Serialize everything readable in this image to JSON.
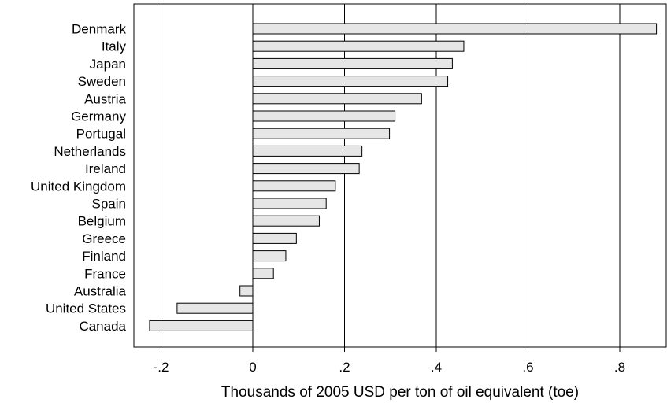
{
  "chart_data": {
    "type": "bar",
    "orientation": "horizontal",
    "title": "",
    "xlabel": "Thousands of 2005 USD per ton of oil equivalent (toe)",
    "ylabel": "",
    "xlim": [
      -0.26,
      0.9
    ],
    "xticks": [
      -0.2,
      0,
      0.2,
      0.4,
      0.6,
      0.8
    ],
    "xtick_labels": [
      "-.2",
      "0",
      ".2",
      ".4",
      ".6",
      ".8"
    ],
    "grid": "vertical",
    "categories": [
      "Denmark",
      "Italy",
      "Japan",
      "Sweden",
      "Austria",
      "Germany",
      "Portugal",
      "Netherlands",
      "Ireland",
      "United Kingdom",
      "Spain",
      "Belgium",
      "Greece",
      "Finland",
      "France",
      "Australia",
      "United States",
      "Canada"
    ],
    "values": [
      0.88,
      0.46,
      0.435,
      0.425,
      0.368,
      0.31,
      0.298,
      0.238,
      0.232,
      0.18,
      0.16,
      0.145,
      0.095,
      0.072,
      0.045,
      -0.028,
      -0.165,
      -0.225
    ],
    "colors": {
      "bar_fill": "#e6e6e6",
      "bar_stroke": "#000000",
      "grid": "#000000"
    }
  }
}
